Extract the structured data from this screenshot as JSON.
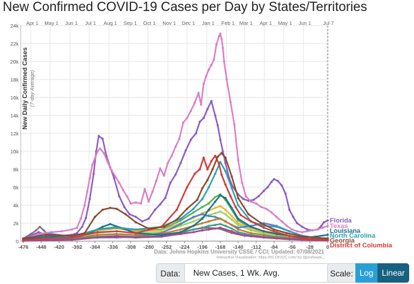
{
  "title": "New Confirmed COVID-19 Cases per Day by States/Territories",
  "controls": {
    "data_label": "Data:",
    "data_value": "New Cases, 1 Wk. Avg.",
    "scale_label": "Scale:",
    "log_label": "Log",
    "linear_label": "Linear"
  },
  "chart_data": {
    "type": "line",
    "ylabel": "New Daily Confirmed Cases",
    "ylabel_sub": "(7-day Average)",
    "source": "Data: Johns Hopkins University CSSE / CCI; Updated: 07/08/2021",
    "credit": "Interactive Visualization: https://91-DIVOC.com/ by @profwade_",
    "xlim": [
      -480,
      0
    ],
    "ylim": [
      0,
      24000
    ],
    "grid": true,
    "x_ticks": [
      -476,
      -448,
      -420,
      -392,
      -364,
      -336,
      -308,
      -280,
      -252,
      -224,
      -196,
      -168,
      -140,
      -112,
      -84,
      -56,
      -28,
      0
    ],
    "y_ticks": [
      0,
      2000,
      4000,
      6000,
      8000,
      10000,
      12000,
      14000,
      16000,
      18000,
      20000,
      22000,
      24000
    ],
    "y_tick_labels": [
      "0",
      "2k",
      "4k",
      "6k",
      "8k",
      "10k",
      "12k",
      "14k",
      "16k",
      "18k",
      "20k",
      "22k",
      "24k"
    ],
    "months": [
      {
        "label": "Apr 1",
        "x": -464
      },
      {
        "label": "May 1",
        "x": -434
      },
      {
        "label": "Jun 1",
        "x": -403
      },
      {
        "label": "Jul 1",
        "x": -373
      },
      {
        "label": "Aug 1",
        "x": -342
      },
      {
        "label": "Sep 1",
        "x": -311
      },
      {
        "label": "Oct 1",
        "x": -281
      },
      {
        "label": "Nov 1",
        "x": -250
      },
      {
        "label": "Dec 1",
        "x": -220
      },
      {
        "label": "Jan 1",
        "x": -189
      },
      {
        "label": "Feb 1",
        "x": -158
      },
      {
        "label": "Mar 1",
        "x": -130
      },
      {
        "label": "Apr 1",
        "x": -99
      },
      {
        "label": "May 1",
        "x": -69
      },
      {
        "label": "Jun 1",
        "x": -38
      },
      {
        "label": "Jul 7",
        "x": -1
      }
    ],
    "series": [
      {
        "name": "Florida",
        "color": "#8a5cc4",
        "x": [
          -476,
          -452,
          -440,
          -420,
          -400,
          -392,
          -384,
          -378,
          -372,
          -366,
          -362,
          -358,
          -352,
          -346,
          -340,
          -334,
          -326,
          -318,
          -310,
          -300,
          -290,
          -280,
          -270,
          -262,
          -254,
          -246,
          -238,
          -230,
          -222,
          -214,
          -206,
          -200,
          -194,
          -188,
          -182,
          -176,
          -172,
          -168,
          -164,
          -160,
          -154,
          -148,
          -140,
          -132,
          -124,
          -116,
          -108,
          -100,
          -94,
          -88,
          -84,
          -78,
          -72,
          -66,
          -60,
          -54,
          -48,
          -40,
          -32,
          -24,
          -16,
          -10,
          -6,
          0
        ],
        "y": [
          300,
          1000,
          700,
          600,
          700,
          900,
          1600,
          2600,
          4700,
          7500,
          10000,
          11700,
          11400,
          9500,
          8200,
          7000,
          5000,
          3800,
          3000,
          2700,
          2200,
          2500,
          3500,
          4100,
          4800,
          6500,
          7400,
          8700,
          10100,
          11300,
          12000,
          13300,
          13700,
          14700,
          15600,
          14000,
          12900,
          11300,
          10000,
          8700,
          7000,
          6000,
          5200,
          4700,
          4500,
          4600,
          5000,
          5600,
          6000,
          6600,
          6900,
          6700,
          6200,
          5300,
          3500,
          2700,
          2000,
          1600,
          1300,
          1200,
          1300,
          1700,
          2100,
          2300
        ]
      },
      {
        "name": "Texas",
        "color": "#da7fc2",
        "x": [
          -476,
          -452,
          -432,
          -416,
          -400,
          -392,
          -386,
          -380,
          -376,
          -372,
          -368,
          -364,
          -360,
          -356,
          -350,
          -344,
          -338,
          -332,
          -326,
          -320,
          -314,
          -308,
          -300,
          -292,
          -286,
          -280,
          -274,
          -268,
          -262,
          -256,
          -250,
          -244,
          -238,
          -232,
          -226,
          -220,
          -214,
          -208,
          -202,
          -198,
          -194,
          -190,
          -186,
          -182,
          -178,
          -174,
          -170,
          -168,
          -166,
          -164,
          -162,
          -158,
          -152,
          -146,
          -140,
          -134,
          -128,
          -120,
          -112,
          -104,
          -96,
          -88,
          -80,
          -72,
          -64,
          -56,
          -48,
          -40,
          -32,
          -24,
          -16,
          -8,
          0
        ],
        "y": [
          200,
          800,
          1000,
          1100,
          1300,
          1500,
          2500,
          4000,
          5500,
          7000,
          8500,
          9200,
          10000,
          10300,
          9800,
          8800,
          7900,
          7200,
          6500,
          5700,
          5000,
          4200,
          4300,
          4200,
          5800,
          4400,
          5500,
          6700,
          8100,
          7300,
          8700,
          9500,
          10500,
          11400,
          13200,
          13700,
          14500,
          15400,
          16500,
          15200,
          17500,
          18400,
          19100,
          19600,
          20200,
          21900,
          22800,
          23100,
          22500,
          21500,
          20000,
          18000,
          15500,
          13000,
          9000,
          6500,
          5000,
          4400,
          4200,
          3800,
          3600,
          3200,
          2700,
          2200,
          1700,
          1300,
          1100,
          1000,
          1100,
          1200,
          1300,
          1500,
          1700
        ]
      },
      {
        "name": "Louisiana",
        "color": "#1d6f91",
        "x": [
          -476,
          -440,
          -400,
          -372,
          -352,
          -340,
          -300,
          -260,
          -230,
          -210,
          -196,
          -186,
          -176,
          -168,
          -160,
          -150,
          -140,
          -120,
          -100,
          -80,
          -60,
          -40,
          -20,
          0
        ],
        "y": [
          200,
          500,
          500,
          900,
          1600,
          1900,
          900,
          700,
          1000,
          1700,
          2500,
          3500,
          4400,
          5100,
          4800,
          3700,
          2500,
          1600,
          1100,
          800,
          600,
          400,
          500,
          700
        ]
      },
      {
        "name": "North Carolina",
        "color": "#2aa1b5",
        "x": [
          -476,
          -440,
          -400,
          -360,
          -330,
          -300,
          -260,
          -230,
          -210,
          -196,
          -186,
          -176,
          -168,
          -160,
          -150,
          -140,
          -120,
          -100,
          -80,
          -60,
          -40,
          -20,
          0
        ],
        "y": [
          100,
          300,
          500,
          1300,
          1500,
          1300,
          1600,
          2500,
          3600,
          4700,
          6000,
          7500,
          8800,
          7800,
          5900,
          4000,
          2200,
          1700,
          1600,
          1100,
          600,
          400,
          300
        ]
      },
      {
        "name": "District of Columbia",
        "color": "#d43a3a",
        "x": [
          -476,
          -440,
          -400,
          -360,
          -330,
          -300,
          -260,
          -236,
          -220,
          -208,
          -200,
          -194,
          -188,
          -182,
          -176,
          -170,
          -166,
          -160,
          -152,
          -144,
          -136,
          -120,
          -100,
          -80,
          -60,
          -40,
          -20,
          0
        ],
        "y": [
          100,
          300,
          400,
          1000,
          1100,
          900,
          1600,
          3500,
          6000,
          7500,
          8000,
          9300,
          8000,
          8900,
          9500,
          8600,
          7400,
          6300,
          5000,
          3800,
          2900,
          2200,
          1500,
          1000,
          600,
          300,
          200,
          150
        ]
      },
      {
        "name": "Georgia",
        "color": "#8b4a2c",
        "x": [
          -476,
          -440,
          -400,
          -380,
          -364,
          -352,
          -340,
          -330,
          -316,
          -300,
          -280,
          -256,
          -236,
          -220,
          -204,
          -196,
          -188,
          -180,
          -172,
          -166,
          -160,
          -150,
          -140,
          -124,
          -104,
          -84,
          -64,
          -44,
          -24,
          0
        ],
        "y": [
          300,
          700,
          600,
          900,
          2700,
          3500,
          3700,
          3600,
          3000,
          2100,
          1400,
          1600,
          2400,
          3600,
          4600,
          5900,
          6800,
          8000,
          9400,
          9800,
          9300,
          7200,
          4800,
          3000,
          2000,
          1300,
          900,
          600,
          400,
          300
        ]
      },
      {
        "name": "",
        "color": "#55b055",
        "x": [
          -476,
          -440,
          -400,
          -360,
          -330,
          -300,
          -260,
          -230,
          -210,
          -196,
          -186,
          -176,
          -168,
          -160,
          -150,
          -140,
          -120,
          -100,
          -80,
          -60,
          -40,
          -20,
          0
        ],
        "y": [
          100,
          400,
          400,
          1300,
          1600,
          1200,
          1300,
          2300,
          3200,
          3800,
          4200,
          4900,
          5200,
          4600,
          3500,
          2300,
          1500,
          1100,
          900,
          600,
          400,
          300,
          250
        ]
      },
      {
        "name": "",
        "color": "#e6b640",
        "x": [
          -476,
          -440,
          -400,
          -360,
          -330,
          -300,
          -260,
          -230,
          -210,
          -196,
          -186,
          -176,
          -168,
          -160,
          -150,
          -140,
          -120,
          -100,
          -80,
          -60,
          -40,
          -20,
          0
        ],
        "y": [
          100,
          300,
          500,
          1200,
          1400,
          1100,
          1200,
          2000,
          2600,
          3100,
          3400,
          3700,
          3900,
          3500,
          2800,
          2000,
          1400,
          1000,
          800,
          500,
          350,
          250,
          200
        ]
      },
      {
        "name": "",
        "color": "#9ad45c",
        "x": [
          -476,
          -440,
          -400,
          -360,
          -330,
          -300,
          -260,
          -230,
          -210,
          -196,
          -186,
          -176,
          -168,
          -160,
          -150,
          -140,
          -120,
          -100,
          -80,
          -60,
          -40,
          -20,
          0
        ],
        "y": [
          80,
          250,
          350,
          900,
          1100,
          900,
          1000,
          1700,
          2200,
          2600,
          2900,
          3100,
          3300,
          3000,
          2400,
          1800,
          1200,
          900,
          700,
          400,
          300,
          200,
          150
        ]
      },
      {
        "name": "",
        "color": "#4d7fd9",
        "x": [
          -476,
          -440,
          -400,
          -360,
          -330,
          -300,
          -260,
          -230,
          -210,
          -196,
          -186,
          -176,
          -168,
          -160,
          -150,
          -140,
          -120,
          -100,
          -80,
          -60,
          -40,
          -20,
          0
        ],
        "y": [
          300,
          900,
          500,
          400,
          400,
          500,
          900,
          1900,
          2700,
          3000,
          2800,
          2700,
          2500,
          2200,
          1800,
          1500,
          1700,
          2000,
          1700,
          1100,
          600,
          400,
          300
        ]
      },
      {
        "name": "",
        "color": "#c07a30",
        "x": [
          -476,
          -440,
          -400,
          -360,
          -330,
          -300,
          -260,
          -230,
          -210,
          -196,
          -186,
          -176,
          -168,
          -160,
          -150,
          -140,
          -120,
          -100,
          -80,
          -60,
          -40,
          -20,
          0
        ],
        "y": [
          60,
          200,
          250,
          700,
          800,
          700,
          800,
          1300,
          1700,
          2000,
          2200,
          2400,
          2500,
          2200,
          1800,
          1300,
          900,
          700,
          500,
          350,
          250,
          150,
          120
        ]
      },
      {
        "name": "",
        "color": "#777777",
        "x": [
          -476,
          -464,
          -456,
          -450,
          -444,
          -436,
          -424,
          -400,
          -360,
          -330,
          -300,
          -260,
          -230,
          -210,
          -190,
          -170,
          -150,
          -130,
          -100,
          -70,
          -40,
          -20,
          0
        ],
        "y": [
          300,
          800,
          1200,
          1600,
          1200,
          700,
          400,
          300,
          400,
          500,
          400,
          500,
          900,
          1300,
          1500,
          1400,
          900,
          600,
          450,
          350,
          250,
          200,
          150
        ]
      },
      {
        "name": "",
        "color": "#3c9c8c",
        "x": [
          -476,
          -440,
          -400,
          -360,
          -330,
          -300,
          -260,
          -230,
          -210,
          -196,
          -186,
          -176,
          -168,
          -160,
          -150,
          -140,
          -120,
          -100,
          -80,
          -60,
          -40,
          -20,
          0
        ],
        "y": [
          40,
          150,
          200,
          500,
          600,
          500,
          600,
          1000,
          1300,
          1500,
          1700,
          1800,
          1900,
          1700,
          1400,
          1000,
          700,
          500,
          400,
          250,
          200,
          120,
          100
        ]
      },
      {
        "name": "",
        "color": "#b0408a",
        "x": [
          -476,
          -440,
          -400,
          -360,
          -330,
          -300,
          -260,
          -230,
          -210,
          -196,
          -186,
          -176,
          -168,
          -160,
          -150,
          -140,
          -120,
          -100,
          -80,
          -60,
          -40,
          -20,
          0
        ],
        "y": [
          30,
          100,
          150,
          400,
          500,
          400,
          500,
          800,
          1000,
          1200,
          1300,
          1400,
          1500,
          1300,
          1100,
          800,
          550,
          400,
          300,
          200,
          150,
          100,
          80
        ]
      }
    ]
  }
}
